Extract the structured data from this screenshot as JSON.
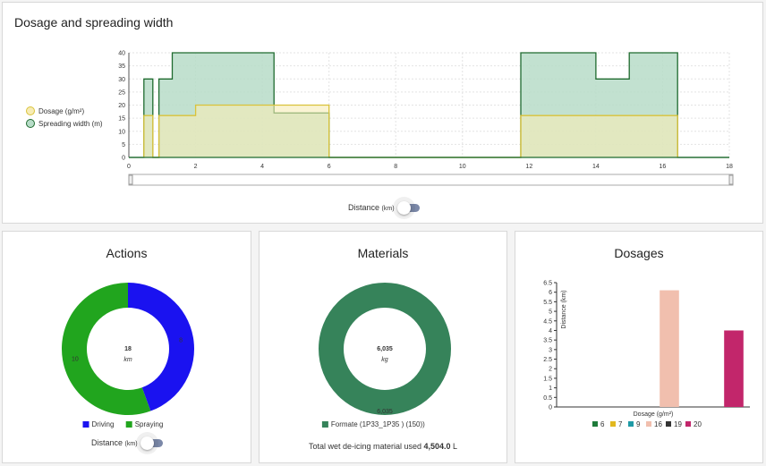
{
  "top": {
    "title": "Dosage and spreading width",
    "toggle_label": "Distance",
    "toggle_unit": "(km)"
  },
  "actions": {
    "title": "Actions",
    "center_value": "18",
    "center_unit": "km",
    "toggle_label": "Distance",
    "toggle_unit": "(km)"
  },
  "materials": {
    "title": "Materials",
    "center_value": "6,035",
    "center_unit": "kg",
    "total_prefix": "Total wet de-icing material used ",
    "total_value": "4,504.0",
    "total_unit": " L"
  },
  "dosages": {
    "title": "Dosages"
  },
  "chart_data": [
    {
      "type": "area",
      "title": "Dosage and spreading width",
      "xlabel": "",
      "ylabel": "",
      "xlim": [
        0,
        18
      ],
      "ylim": [
        0,
        40
      ],
      "x_ticks": [
        0,
        2,
        4,
        6,
        8,
        10,
        12,
        14,
        16,
        18
      ],
      "y_ticks": [
        0,
        5,
        10,
        15,
        20,
        25,
        30,
        35,
        40
      ],
      "grid": true,
      "legend": "left",
      "series": [
        {
          "name": "Dosage (g/m²)",
          "color": "#d9c23a",
          "fill": "#f7ecb5",
          "points": [
            [
              0.45,
              0
            ],
            [
              0.45,
              16
            ],
            [
              0.72,
              16
            ],
            [
              0.72,
              0
            ],
            [
              0.9,
              0
            ],
            [
              0.9,
              16
            ],
            [
              2.0,
              16
            ],
            [
              2.0,
              20
            ],
            [
              4.35,
              20
            ],
            [
              4.35,
              20
            ],
            [
              6.0,
              20
            ],
            [
              6.0,
              0
            ],
            [
              11.75,
              0
            ],
            [
              11.75,
              16
            ],
            [
              16.45,
              16
            ],
            [
              16.45,
              0
            ]
          ]
        },
        {
          "name": "Spreading width (m)",
          "color": "#1f6b2f",
          "fill": "#b7dcc8",
          "points": [
            [
              0,
              0
            ],
            [
              0.45,
              0
            ],
            [
              0.45,
              30
            ],
            [
              0.72,
              30
            ],
            [
              0.72,
              0
            ],
            [
              0.9,
              0
            ],
            [
              0.9,
              30
            ],
            [
              1.3,
              30
            ],
            [
              1.3,
              40
            ],
            [
              4.35,
              40
            ],
            [
              4.35,
              17
            ],
            [
              6.0,
              17
            ],
            [
              6.0,
              0
            ],
            [
              11.75,
              0
            ],
            [
              11.75,
              40
            ],
            [
              14.0,
              40
            ],
            [
              14.0,
              30
            ],
            [
              15.0,
              30
            ],
            [
              15.0,
              40
            ],
            [
              16.45,
              40
            ],
            [
              16.45,
              0
            ],
            [
              18,
              0
            ]
          ]
        }
      ]
    },
    {
      "type": "pie",
      "title": "Actions",
      "donut": true,
      "legend": "bottom",
      "slices": [
        {
          "name": "Driving",
          "value": 8,
          "label": "8",
          "color": "#1a12f0"
        },
        {
          "name": "Spraying",
          "value": 10,
          "label": "10",
          "color": "#21a51e"
        }
      ]
    },
    {
      "type": "pie",
      "title": "Materials",
      "donut": true,
      "legend": "bottom",
      "slices": [
        {
          "name": "Formate (1P33_1P35 ) (150))",
          "value": 6035,
          "label": "6,035",
          "color": "#36835a"
        }
      ]
    },
    {
      "type": "bar",
      "title": "Dosages",
      "xlabel": "Dosage (g/m²)",
      "ylabel": "Distance (km)",
      "ylim": [
        0,
        6.5
      ],
      "y_ticks": [
        0,
        0.5,
        1,
        1.5,
        2,
        2.5,
        3,
        3.5,
        4,
        4.5,
        5,
        5.5,
        6,
        6.5
      ],
      "legend": "bottom",
      "categories": [
        "6",
        "7",
        "9",
        "16",
        "19",
        "20"
      ],
      "values": [
        0,
        0,
        0,
        6.1,
        0,
        4.0
      ],
      "colors": [
        "#1e7b3a",
        "#e2b81f",
        "#1f9aa6",
        "#f1bfae",
        "#333333",
        "#c2266b"
      ]
    }
  ]
}
